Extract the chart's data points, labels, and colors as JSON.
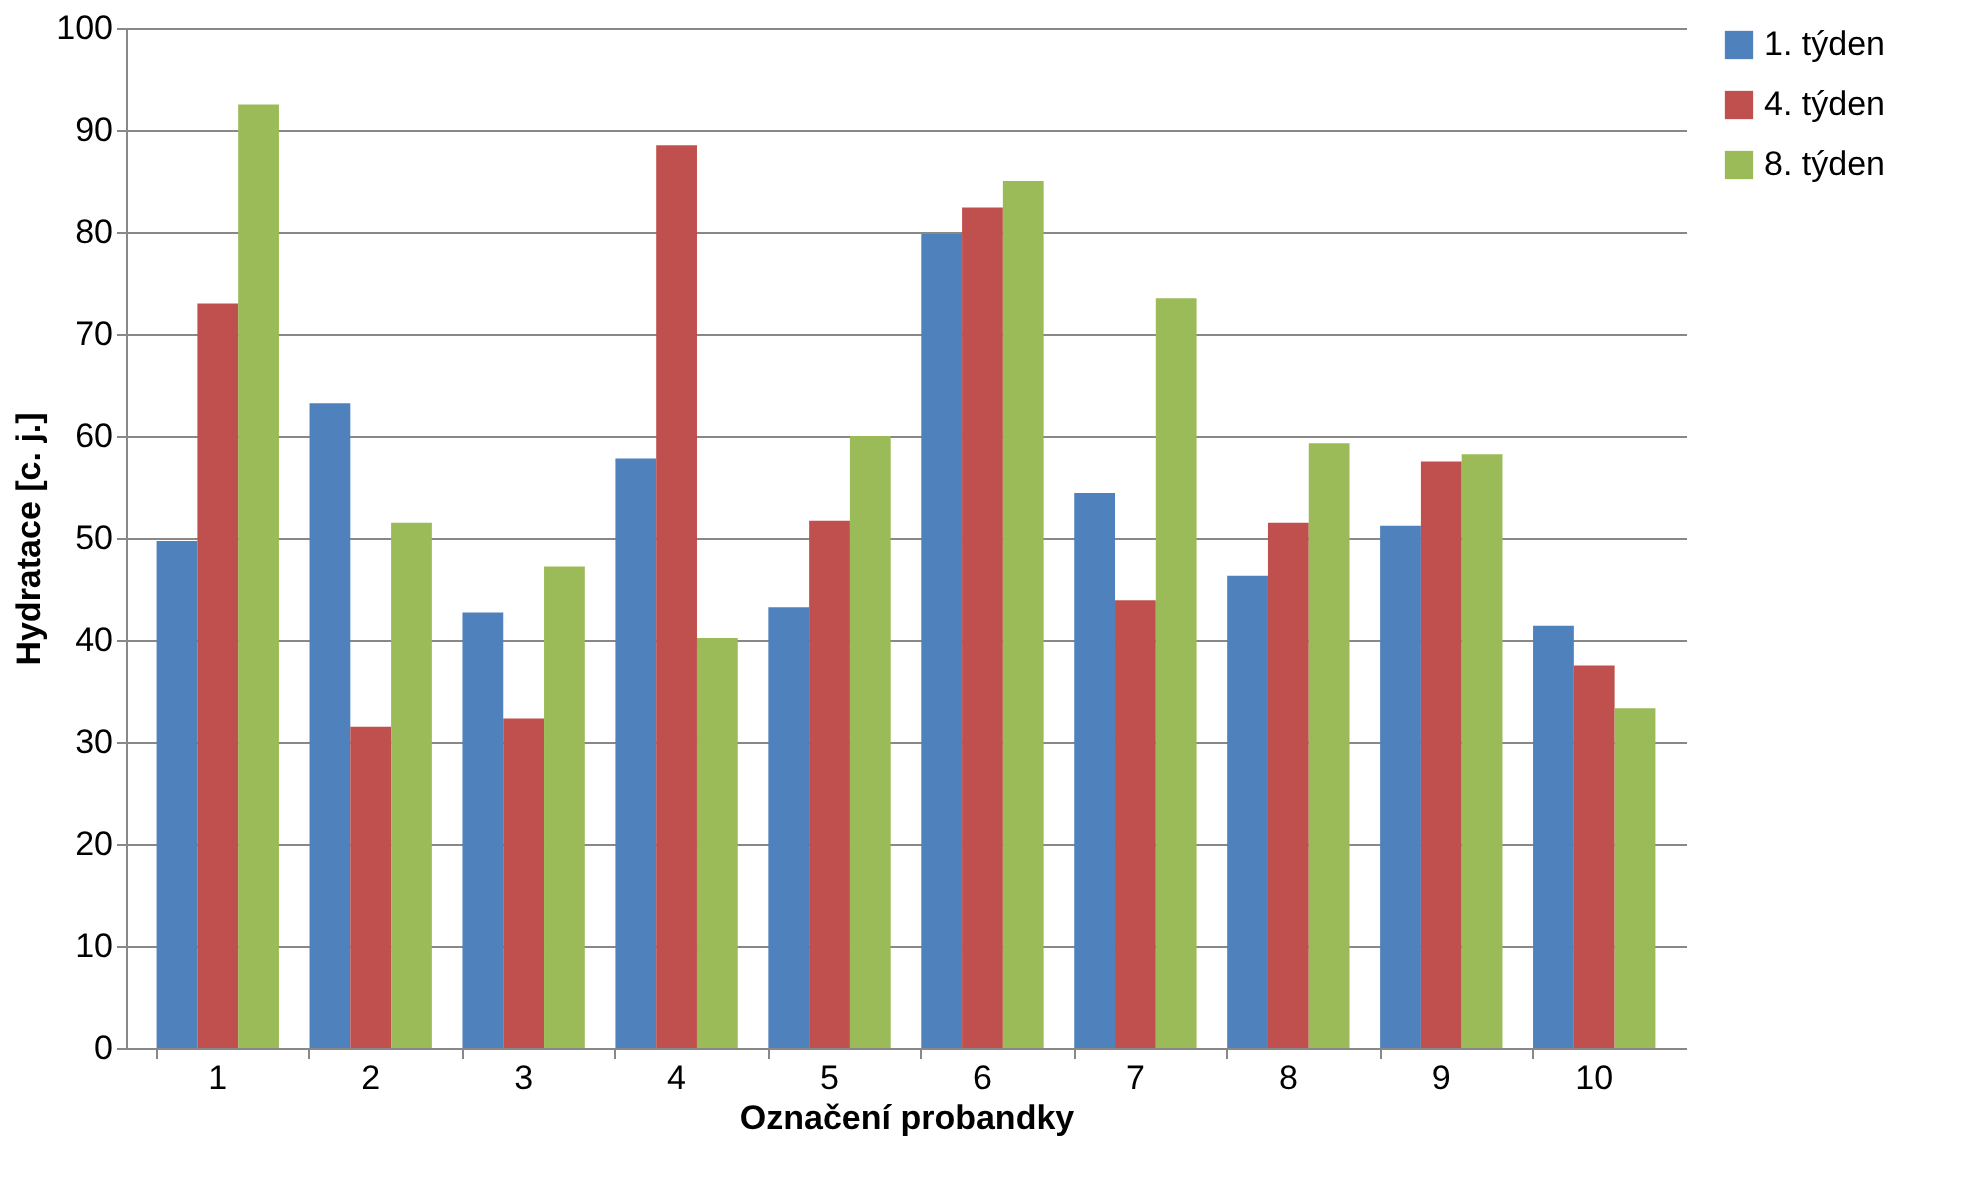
{
  "chart_data": {
    "type": "bar",
    "xlabel": "Označení probandky",
    "ylabel": "Hydratace [c. j.]",
    "categories": [
      "1",
      "2",
      "3",
      "4",
      "5",
      "6",
      "7",
      "8",
      "9",
      "10"
    ],
    "series": [
      {
        "name": "1. týden",
        "color": "#4f81bd",
        "values": [
          49.7,
          63.2,
          42.7,
          57.8,
          43.2,
          79.8,
          54.4,
          46.3,
          51.2,
          41.4
        ]
      },
      {
        "name": "4. týden",
        "color": "#c0504d",
        "values": [
          73.0,
          31.5,
          32.3,
          88.5,
          51.7,
          82.4,
          43.9,
          51.5,
          57.5,
          37.5
        ]
      },
      {
        "name": "8. týden",
        "color": "#9bbb59",
        "values": [
          92.5,
          51.5,
          47.2,
          40.2,
          60.0,
          85.0,
          73.5,
          59.3,
          58.2,
          33.3
        ]
      }
    ],
    "ylim": [
      0,
      100
    ],
    "yticks": [
      0,
      10,
      20,
      30,
      40,
      50,
      60,
      70,
      80,
      90,
      100
    ],
    "grid": "y",
    "legend": "right"
  }
}
